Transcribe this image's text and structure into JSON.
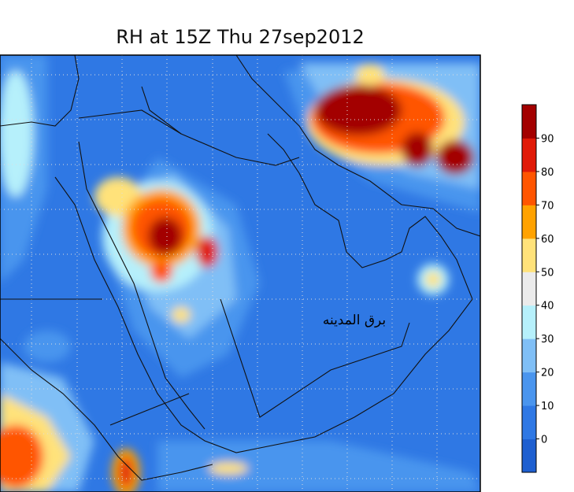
{
  "title": "RH at 15Z Thu 27sep2012",
  "annotation": "برق المدينه",
  "colorbar": {
    "labels": [
      0,
      10,
      20,
      30,
      40,
      50,
      60,
      70,
      80,
      90
    ],
    "colors": [
      "#1e5fd0",
      "#2f78e4",
      "#4a95ee",
      "#80bff6",
      "#b6f0fb",
      "#ebebeb",
      "#ffe27a",
      "#ffa200",
      "#ff5500",
      "#e01a08",
      "#a30000"
    ]
  }
}
